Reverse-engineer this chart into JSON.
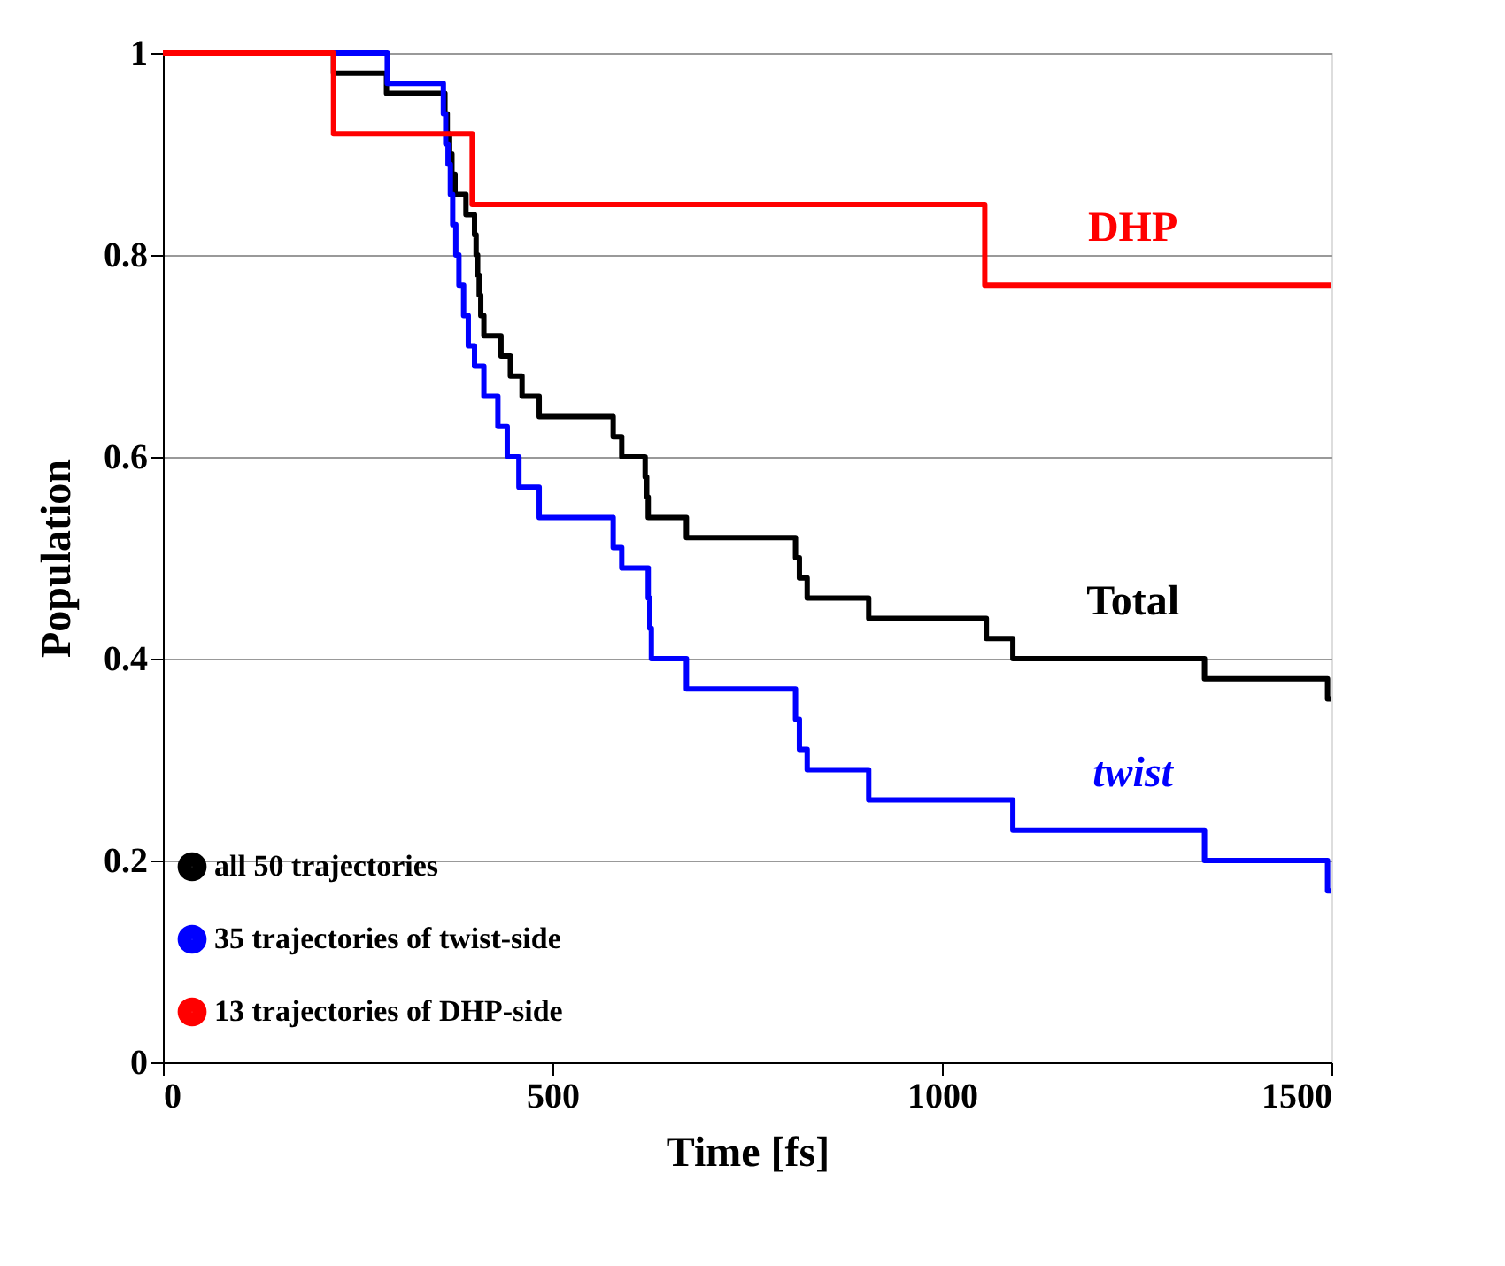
{
  "chart_data": {
    "type": "step",
    "xlabel": "Time [fs]",
    "ylabel": "Population",
    "xlim": [
      0,
      1500
    ],
    "xticks": [
      0,
      500,
      1000,
      1500
    ],
    "ylim": [
      0,
      1
    ],
    "yticks": [
      0,
      0.2,
      0.4,
      0.6,
      0.8,
      1
    ],
    "annotations": [
      "Total",
      "twist",
      "DHP"
    ],
    "grid": "y",
    "legend": "bottom left",
    "marker": "none",
    "line_style": "solid",
    "series": [
      {
        "name": "all 50 trajectories",
        "color": "#000000",
        "x": [
          0,
          219,
          287,
          362,
          365,
          368,
          371,
          375,
          389,
          400,
          402,
          404,
          406,
          408,
          412,
          434,
          446,
          461,
          483,
          578,
          589,
          619,
          621,
          623,
          672,
          812,
          817,
          827,
          906,
          1057,
          1091,
          1337,
          1495,
          1500
        ],
        "values": [
          1,
          0.98,
          0.96,
          0.94,
          0.92,
          0.9,
          0.88,
          0.86,
          0.84,
          0.82,
          0.8,
          0.78,
          0.76,
          0.74,
          0.72,
          0.7,
          0.68,
          0.66,
          0.64,
          0.62,
          0.6,
          0.58,
          0.56,
          0.54,
          0.52,
          0.5,
          0.48,
          0.46,
          0.44,
          0.42,
          0.4,
          0.38,
          0.36,
          0.36
        ]
      },
      {
        "name": "35 trajectories  of twist-side",
        "color": "#0000ff",
        "x": [
          0,
          288,
          360,
          363,
          366,
          369,
          372,
          376,
          380,
          386,
          392,
          400,
          412,
          430,
          442,
          457,
          483,
          578,
          589,
          623,
          625,
          627,
          672,
          812,
          817,
          827,
          906,
          1091,
          1337,
          1495,
          1500
        ],
        "values": [
          1,
          0.97,
          0.94,
          0.91,
          0.89,
          0.86,
          0.83,
          0.8,
          0.77,
          0.74,
          0.71,
          0.69,
          0.66,
          0.63,
          0.6,
          0.57,
          0.54,
          0.51,
          0.49,
          0.46,
          0.43,
          0.4,
          0.37,
          0.34,
          0.31,
          0.29,
          0.26,
          0.23,
          0.2,
          0.17,
          0.17
        ]
      },
      {
        "name": "13 trajectories  of DHP-side",
        "color": "#ff0000",
        "x": [
          0,
          219,
          397,
          1055,
          1500
        ],
        "values": [
          1,
          0.92,
          0.85,
          0.77,
          0.77
        ]
      }
    ]
  }
}
